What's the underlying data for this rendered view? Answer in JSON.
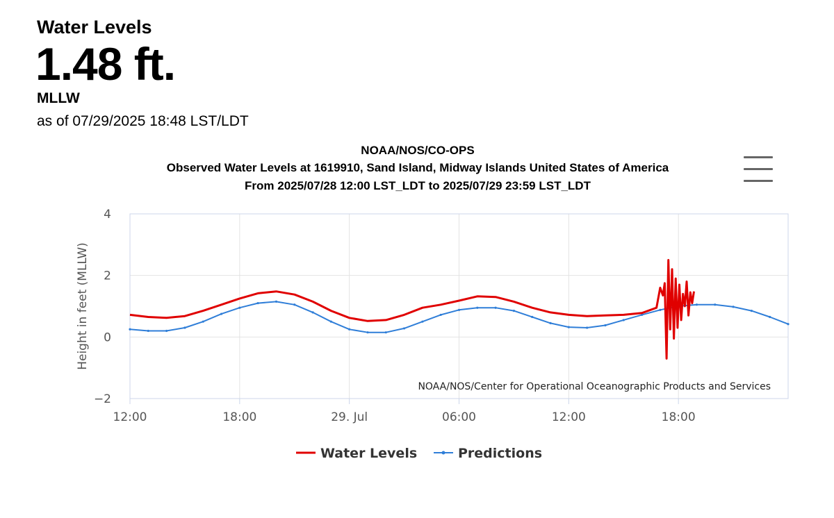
{
  "header": {
    "title": "Water Levels",
    "value": "1.48 ft.",
    "datum": "MLLW",
    "as_of": "as of 07/29/2025 18:48 LST/LDT"
  },
  "menu": {
    "icon": "hamburger-menu-icon"
  },
  "chart_data": {
    "type": "line",
    "title": "NOAA/NOS/CO-OPS",
    "subtitle": "Observed Water Levels at 1619910, Sand Island, Midway Islands United States of America",
    "subtitle2": "From 2025/07/28 12:00 LST_LDT to 2025/07/29 23:59 LST_LDT",
    "xlabel": "",
    "ylabel": "Height in feet (MLLW)",
    "x_unit": "hours since 2025/07/28 00:00",
    "xlim": [
      12,
      48
    ],
    "ylim": [
      -2,
      4
    ],
    "y_ticks": [
      -2,
      0,
      2,
      4
    ],
    "x_ticks": [
      {
        "x": 12,
        "label": "12:00"
      },
      {
        "x": 18,
        "label": "18:00"
      },
      {
        "x": 24,
        "label": "29. Jul"
      },
      {
        "x": 30,
        "label": "06:00"
      },
      {
        "x": 36,
        "label": "12:00"
      },
      {
        "x": 42,
        "label": "18:00"
      }
    ],
    "grid": true,
    "credit": "NOAA/NOS/Center for Operational Oceanographic Products and Services",
    "legend_position": "bottom-center",
    "series": [
      {
        "name": "Water Levels",
        "color": "#e00000",
        "x": [
          12,
          13,
          14,
          15,
          16,
          17,
          18,
          19,
          20,
          21,
          22,
          23,
          24,
          25,
          26,
          27,
          28,
          29,
          30,
          31,
          32,
          33,
          34,
          35,
          36,
          37,
          38,
          39,
          40,
          40.8,
          41.0,
          41.15,
          41.25,
          41.35,
          41.45,
          41.55,
          41.65,
          41.75,
          41.85,
          41.95,
          42.05,
          42.15,
          42.25,
          42.35,
          42.45,
          42.55,
          42.65,
          42.75,
          42.85
        ],
        "y": [
          0.72,
          0.65,
          0.62,
          0.68,
          0.85,
          1.05,
          1.25,
          1.42,
          1.48,
          1.38,
          1.15,
          0.85,
          0.62,
          0.52,
          0.55,
          0.72,
          0.95,
          1.05,
          1.18,
          1.32,
          1.3,
          1.15,
          0.95,
          0.8,
          0.72,
          0.68,
          0.7,
          0.72,
          0.78,
          0.95,
          1.6,
          1.35,
          1.75,
          -0.7,
          2.5,
          0.25,
          2.2,
          -0.05,
          1.9,
          0.3,
          1.7,
          0.55,
          1.4,
          1.0,
          1.8,
          0.7,
          1.45,
          1.1,
          1.48
        ]
      },
      {
        "name": "Predictions",
        "color": "#2f7ed8",
        "x": [
          12,
          13,
          14,
          15,
          16,
          17,
          18,
          19,
          20,
          21,
          22,
          23,
          24,
          25,
          26,
          27,
          28,
          29,
          30,
          31,
          32,
          33,
          34,
          35,
          36,
          37,
          38,
          39,
          40,
          41,
          42,
          43,
          44,
          45,
          46,
          47,
          48
        ],
        "y": [
          0.25,
          0.2,
          0.2,
          0.3,
          0.5,
          0.75,
          0.95,
          1.1,
          1.15,
          1.05,
          0.8,
          0.5,
          0.25,
          0.15,
          0.15,
          0.28,
          0.5,
          0.72,
          0.88,
          0.95,
          0.95,
          0.85,
          0.65,
          0.45,
          0.32,
          0.3,
          0.38,
          0.55,
          0.72,
          0.88,
          1.0,
          1.05,
          1.05,
          0.98,
          0.85,
          0.65,
          0.42
        ]
      }
    ]
  }
}
